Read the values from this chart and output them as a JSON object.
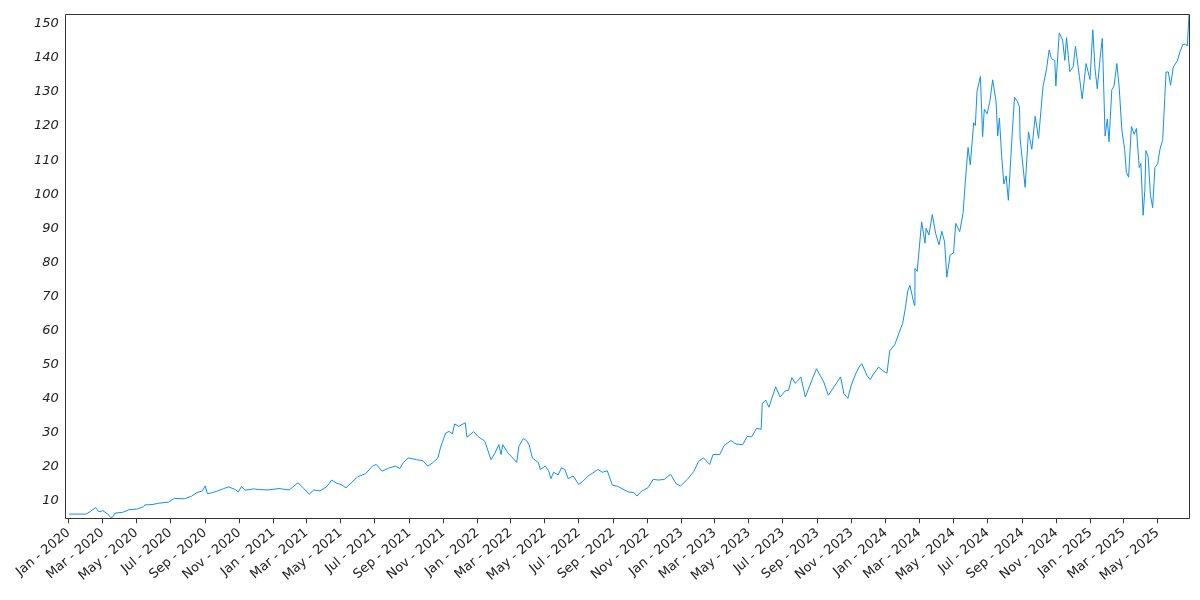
{
  "chart_data": {
    "type": "line",
    "color": "#1390e8",
    "marker": "none",
    "grid": false,
    "legend": false,
    "xlim": [
      "2019-12-25",
      "2025-06-26"
    ],
    "xticks": [
      {
        "value": "2020-01",
        "label": "Jan - 2020"
      },
      {
        "value": "2020-03",
        "label": "Mar - 2020"
      },
      {
        "value": "2020-05",
        "label": "May - 2020"
      },
      {
        "value": "2020-07",
        "label": "Jul - 2020"
      },
      {
        "value": "2020-09",
        "label": "Sep - 2020"
      },
      {
        "value": "2020-11",
        "label": "Nov - 2020"
      },
      {
        "value": "2021-01",
        "label": "Jan - 2021"
      },
      {
        "value": "2021-03",
        "label": "Mar - 2021"
      },
      {
        "value": "2021-05",
        "label": "May - 2021"
      },
      {
        "value": "2021-07",
        "label": "Jul - 2021"
      },
      {
        "value": "2021-09",
        "label": "Sep - 2021"
      },
      {
        "value": "2021-11",
        "label": "Nov - 2021"
      },
      {
        "value": "2022-01",
        "label": "Jan - 2022"
      },
      {
        "value": "2022-03",
        "label": "Mar - 2022"
      },
      {
        "value": "2022-05",
        "label": "May - 2022"
      },
      {
        "value": "2022-07",
        "label": "Jul - 2022"
      },
      {
        "value": "2022-09",
        "label": "Sep - 2022"
      },
      {
        "value": "2022-11",
        "label": "Nov - 2022"
      },
      {
        "value": "2023-01",
        "label": "Jan - 2023"
      },
      {
        "value": "2023-03",
        "label": "Mar - 2023"
      },
      {
        "value": "2023-05",
        "label": "May - 2023"
      },
      {
        "value": "2023-07",
        "label": "Jul - 2023"
      },
      {
        "value": "2023-09",
        "label": "Sep - 2023"
      },
      {
        "value": "2023-11",
        "label": "Nov - 2023"
      },
      {
        "value": "2024-01",
        "label": "Jan - 2024"
      },
      {
        "value": "2024-03",
        "label": "Mar - 2024"
      },
      {
        "value": "2024-05",
        "label": "May - 2024"
      },
      {
        "value": "2024-07",
        "label": "Jul - 2024"
      },
      {
        "value": "2024-09",
        "label": "Sep - 2024"
      },
      {
        "value": "2024-11",
        "label": "Nov - 2024"
      },
      {
        "value": "2025-01",
        "label": "Jan - 2025"
      },
      {
        "value": "2025-03",
        "label": "Mar - 2025"
      },
      {
        "value": "2025-05",
        "label": "May - 2025"
      }
    ],
    "ylim": [
      4.8,
      153
    ],
    "yticks": [
      10,
      20,
      30,
      40,
      50,
      60,
      70,
      80,
      90,
      100,
      110,
      120,
      130,
      140,
      150
    ],
    "x": [
      "2020-01-02",
      "2020-02-01",
      "2020-02-08",
      "2020-02-18",
      "2020-02-24",
      "2020-03-02",
      "2020-03-11",
      "2020-03-16",
      "2020-03-20",
      "2020-03-24",
      "2020-04-06",
      "2020-04-18",
      "2020-05-03",
      "2020-05-14",
      "2020-05-16",
      "2020-05-29",
      "2020-06-10",
      "2020-06-27",
      "2020-07-08",
      "2020-07-26",
      "2020-08-07",
      "2020-08-17",
      "2020-08-27",
      "2020-09-01",
      "2020-09-05",
      "2020-09-14",
      "2020-09-23",
      "2020-10-04",
      "2020-10-13",
      "2020-10-25",
      "2020-10-30",
      "2020-11-05",
      "2020-11-11",
      "2020-11-26",
      "2020-12-07",
      "2020-12-22",
      "2021-01-11",
      "2021-01-29",
      "2021-02-14",
      "2021-02-24",
      "2021-03-06",
      "2021-03-14",
      "2021-03-25",
      "2021-04-06",
      "2021-04-15",
      "2021-04-24",
      "2021-05-02",
      "2021-05-11",
      "2021-05-20",
      "2021-06-01",
      "2021-06-15",
      "2021-06-27",
      "2021-07-04",
      "2021-07-14",
      "2021-07-26",
      "2021-08-07",
      "2021-08-15",
      "2021-08-21",
      "2021-08-30",
      "2021-09-14",
      "2021-09-25",
      "2021-10-04",
      "2021-10-13",
      "2021-10-22",
      "2021-10-27",
      "2021-11-05",
      "2021-11-11",
      "2021-11-17",
      "2021-11-21",
      "2021-11-28",
      "2021-12-10",
      "2021-12-13",
      "2021-12-25",
      "2022-01-02",
      "2022-01-14",
      "2022-01-25",
      "2022-02-01",
      "2022-02-08",
      "2022-02-12",
      "2022-02-15",
      "2022-02-24",
      "2022-03-02",
      "2022-03-12",
      "2022-03-16",
      "2022-03-24",
      "2022-03-30",
      "2022-04-03",
      "2022-04-09",
      "2022-04-15",
      "2022-04-20",
      "2022-04-23",
      "2022-05-02",
      "2022-05-08",
      "2022-05-12",
      "2022-05-17",
      "2022-05-25",
      "2022-05-31",
      "2022-06-06",
      "2022-06-12",
      "2022-06-21",
      "2022-07-01",
      "2022-07-08",
      "2022-07-17",
      "2022-07-26",
      "2022-08-04",
      "2022-08-12",
      "2022-08-21",
      "2022-08-30",
      "2022-09-08",
      "2022-09-18",
      "2022-09-28",
      "2022-10-07",
      "2022-10-13",
      "2022-10-21",
      "2022-11-02",
      "2022-11-11",
      "2022-11-20",
      "2022-12-01",
      "2022-12-12",
      "2022-12-22",
      "2022-12-30",
      "2023-01-11",
      "2023-01-23",
      "2023-01-31",
      "2023-02-09",
      "2023-02-20",
      "2023-02-26",
      "2023-03-10",
      "2023-03-18",
      "2023-03-30",
      "2023-04-08",
      "2023-04-20",
      "2023-04-28",
      "2023-05-06",
      "2023-05-15",
      "2023-05-23",
      "2023-05-25",
      "2023-05-31",
      "2023-06-06",
      "2023-06-12",
      "2023-06-18",
      "2023-06-26",
      "2023-07-05",
      "2023-07-11",
      "2023-07-17",
      "2023-07-23",
      "2023-07-28",
      "2023-08-02",
      "2023-08-10",
      "2023-08-18",
      "2023-08-24",
      "2023-08-30",
      "2023-09-04",
      "2023-09-12",
      "2023-09-20",
      "2023-09-28",
      "2023-10-06",
      "2023-10-12",
      "2023-10-18",
      "2023-10-25",
      "2023-10-31",
      "2023-11-08",
      "2023-11-14",
      "2023-11-19",
      "2023-11-28",
      "2023-12-04",
      "2023-12-10",
      "2023-12-19",
      "2023-12-26",
      "2024-01-03",
      "2024-01-08",
      "2024-01-17",
      "2024-01-25",
      "2024-01-31",
      "2024-02-05",
      "2024-02-09",
      "2024-02-13",
      "2024-02-21",
      "2024-02-22",
      "2024-02-26",
      "2024-03-05",
      "2024-03-11",
      "2024-03-13",
      "2024-03-18",
      "2024-03-24",
      "2024-03-30",
      "2024-04-05",
      "2024-04-10",
      "2024-04-15",
      "2024-04-19",
      "2024-04-25",
      "2024-05-01",
      "2024-05-05",
      "2024-05-12",
      "2024-05-18",
      "2024-05-22",
      "2024-05-27",
      "2024-05-31",
      "2024-06-06",
      "2024-06-09",
      "2024-06-12",
      "2024-06-18",
      "2024-06-22",
      "2024-06-25",
      "2024-06-30",
      "2024-07-05",
      "2024-07-10",
      "2024-07-16",
      "2024-07-19",
      "2024-07-22",
      "2024-07-26",
      "2024-07-30",
      "2024-08-03",
      "2024-08-07",
      "2024-08-14",
      "2024-08-18",
      "2024-08-23",
      "2024-08-27",
      "2024-08-28",
      "2024-09-06",
      "2024-09-12",
      "2024-09-18",
      "2024-09-24",
      "2024-09-30",
      "2024-10-08",
      "2024-10-14",
      "2024-10-19",
      "2024-10-23",
      "2024-10-29",
      "2024-10-31",
      "2024-11-06",
      "2024-11-12",
      "2024-11-16",
      "2024-11-19",
      "2024-11-25",
      "2024-12-01",
      "2024-12-05",
      "2024-12-12",
      "2024-12-17",
      "2024-12-24",
      "2024-12-31",
      "2025-01-05",
      "2025-01-09",
      "2025-01-13",
      "2025-01-18",
      "2025-01-22",
      "2025-01-27",
      "2025-01-31",
      "2025-02-03",
      "2025-02-08",
      "2025-02-12",
      "2025-02-17",
      "2025-02-21",
      "2025-02-26",
      "2025-03-03",
      "2025-03-06",
      "2025-03-10",
      "2025-03-15",
      "2025-03-20",
      "2025-03-24",
      "2025-03-29",
      "2025-04-01",
      "2025-04-05",
      "2025-04-08",
      "2025-04-10",
      "2025-04-14",
      "2025-04-18",
      "2025-04-22",
      "2025-04-26",
      "2025-05-01",
      "2025-05-05",
      "2025-05-10",
      "2025-05-16",
      "2025-05-20",
      "2025-05-24",
      "2025-05-29",
      "2025-06-05",
      "2025-06-10",
      "2025-06-15",
      "2025-06-20",
      "2025-06-23",
      "2025-06-26"
    ],
    "values": [
      6.0,
      6.0,
      6.7,
      7.9,
      6.7,
      7.0,
      6.0,
      5.0,
      5.2,
      6.3,
      6.5,
      7.3,
      7.5,
      8.2,
      8.7,
      8.8,
      9.2,
      9.5,
      10.6,
      10.5,
      11.2,
      12.3,
      12.8,
      14.3,
      12.0,
      12.3,
      12.8,
      13.5,
      14.0,
      13.2,
      12.5,
      14.1,
      13.0,
      13.4,
      13.2,
      13.1,
      13.5,
      13.1,
      15.2,
      13.6,
      11.8,
      13.1,
      12.8,
      14.0,
      16.0,
      15.1,
      14.7,
      13.7,
      15.2,
      17.0,
      17.9,
      20.1,
      20.6,
      18.6,
      19.5,
      20.1,
      19.4,
      21.1,
      22.5,
      22.0,
      21.7,
      20.1,
      21.1,
      22.5,
      25.7,
      29.8,
      30.3,
      29.6,
      32.5,
      31.8,
      32.8,
      28.6,
      30.2,
      28.8,
      27.4,
      22.0,
      23.9,
      26.4,
      23.5,
      26.4,
      24.0,
      23.0,
      21.2,
      26.0,
      28.2,
      27.5,
      26.4,
      22.5,
      21.7,
      21.1,
      19.1,
      20.1,
      18.8,
      16.4,
      18.3,
      17.5,
      19.6,
      19.1,
      16.4,
      17.2,
      14.7,
      15.6,
      17.1,
      18.1,
      19.1,
      18.3,
      18.7,
      14.5,
      14.2,
      13.3,
      12.5,
      12.3,
      11.3,
      12.7,
      13.8,
      16.2,
      16.0,
      16.2,
      17.7,
      14.9,
      14.3,
      16.2,
      18.6,
      21.5,
      22.5,
      20.6,
      23.5,
      23.5,
      26.2,
      27.6,
      26.6,
      26.4,
      28.8,
      28.7,
      31.2,
      30.9,
      38.5,
      39.5,
      37.4,
      40.4,
      43.4,
      40.4,
      42.2,
      42.4,
      46.1,
      44.4,
      45.3,
      46.3,
      40.4,
      43.8,
      46.3,
      48.7,
      47.2,
      44.8,
      40.9,
      42.8,
      44.8,
      46.3,
      41.4,
      40.0,
      43.8,
      47.2,
      49.2,
      50.2,
      46.8,
      45.5,
      47.2,
      49.2,
      48.2,
      47.4,
      54.0,
      55.8,
      59.4,
      62.0,
      66.6,
      71.5,
      73.2,
      67.3,
      78.2,
      77.3,
      91.9,
      85.6,
      90.0,
      88.0,
      94.0,
      88.5,
      85.1,
      89.1,
      86.0,
      75.6,
      82.2,
      82.7,
      91.4,
      89.0,
      94.3,
      103.5,
      113.7,
      108.6,
      121.0,
      120.2,
      130.2,
      134.6,
      116.9,
      125.0,
      123.6,
      127.3,
      133.6,
      127.3,
      117.1,
      122.4,
      111.3,
      103.0,
      105.4,
      98.2,
      118.0,
      128.5,
      127.3,
      125.6,
      116.5,
      102.0,
      118.3,
      113.2,
      122.9,
      116.4,
      131.6,
      136.5,
      142.4,
      139.8,
      139.3,
      131.8,
      147.4,
      145.3,
      139.3,
      146.0,
      136.0,
      137.5,
      143.5,
      134.6,
      128.0,
      138.4,
      133.7,
      148.3,
      136.8,
      131.0,
      139.9,
      145.8,
      117.1,
      122.1,
      115.4,
      130.7,
      131.8,
      138.4,
      131.8,
      118.8,
      113.1,
      106.4,
      105.0,
      119.9,
      117.6,
      119.3,
      107.8,
      109.0,
      93.8,
      101.1,
      112.8,
      111.0,
      99.9,
      96.0,
      107.8,
      109.0,
      113.1,
      116.1,
      135.9,
      135.9,
      132.0,
      137.4,
      139.1,
      141.9,
      144.0,
      144.1,
      143.5,
      152.8
    ]
  }
}
